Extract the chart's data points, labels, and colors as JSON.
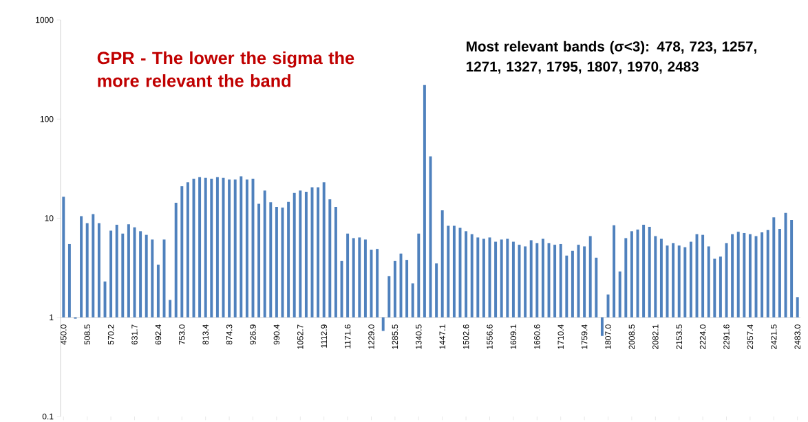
{
  "chart_data": {
    "type": "bar",
    "title": "GPR - The lower the sigma the more relevant the band",
    "annotations": [
      "**Most relevant bands (σ<3): 478, 723, 1257, 1271, 1327, 1795, 1807, 1970, 2483**"
    ],
    "categories": [
      "450.0",
      null,
      null,
      null,
      "508.5",
      null,
      null,
      null,
      "570.2",
      null,
      null,
      null,
      "631.7",
      null,
      null,
      null,
      "692.4",
      null,
      null,
      null,
      "753.0",
      null,
      null,
      null,
      "813.4",
      null,
      null,
      null,
      "874.3",
      null,
      null,
      null,
      "926.9",
      null,
      null,
      null,
      "990.4",
      null,
      null,
      null,
      "1052.7",
      null,
      null,
      null,
      "1112.9",
      null,
      null,
      null,
      "1171.6",
      null,
      null,
      null,
      "1229.0",
      null,
      null,
      null,
      "1285.5",
      null,
      null,
      null,
      "1340.5",
      null,
      null,
      null,
      "1447.1",
      null,
      null,
      null,
      "1502.6",
      null,
      null,
      null,
      "1556.6",
      null,
      null,
      null,
      "1609.1",
      null,
      null,
      null,
      "1660.6",
      null,
      null,
      null,
      "1710.4",
      null,
      null,
      null,
      "1759.4",
      null,
      null,
      null,
      "1807.0",
      null,
      null,
      null,
      "2008.5",
      null,
      null,
      null,
      "2082.1",
      null,
      null,
      null,
      "2153.5",
      null,
      null,
      null,
      "2224.0",
      null,
      null,
      null,
      "2291.6",
      null,
      null,
      null,
      "2357.4",
      null,
      null,
      null,
      "2421.5",
      null,
      null,
      null,
      "2483.0"
    ],
    "values": [
      15.5,
      4.5,
      -0.03,
      9.5,
      7.9,
      10,
      7.9,
      1.3,
      6.5,
      7.6,
      6.0,
      7.7,
      7.1,
      6.4,
      5.8,
      5.1,
      2.4,
      5.1,
      0.5,
      13.3,
      20,
      22,
      24,
      25,
      24.5,
      24,
      25,
      24.5,
      23.5,
      23.5,
      25.5,
      23.5,
      24,
      13,
      18,
      13.5,
      12,
      11.8,
      13.6,
      17,
      18,
      17.5,
      19.5,
      19.5,
      22,
      14.5,
      12,
      2.7,
      6,
      5.3,
      5.4,
      5.1,
      3.8,
      3.9,
      -0.27,
      1.6,
      2.7,
      3.4,
      2.8,
      1.2,
      6,
      219,
      41,
      2.5,
      11,
      7.4,
      7.4,
      7,
      6.4,
      5.9,
      5.4,
      5.2,
      5.4,
      4.8,
      5.1,
      5.2,
      4.8,
      4.4,
      4.2,
      5,
      4.6,
      5.2,
      4.6,
      4.4,
      4.5,
      3.2,
      3.7,
      4.4,
      4.2,
      5.6,
      3.0,
      -0.35,
      0.7,
      7.5,
      1.9,
      5.3,
      6.4,
      6.7,
      7.6,
      7.2,
      5.6,
      5.2,
      4.3,
      4.6,
      4.3,
      4.1,
      4.8,
      5.9,
      5.8,
      4.2,
      2.9,
      3.1,
      4.6,
      5.9,
      6.3,
      6.1,
      5.9,
      5.6,
      6.2,
      6.6,
      9.2,
      6.8,
      10.3,
      8.6,
      0.6
    ],
    "base": [
      1,
      1,
      1,
      1,
      1,
      1,
      1,
      1,
      1,
      1,
      1,
      1,
      1,
      1,
      1,
      1,
      1,
      1,
      1,
      1,
      1,
      1,
      1,
      1,
      1,
      1,
      1,
      1,
      1,
      1,
      1,
      1,
      1,
      1,
      1,
      1,
      1,
      1,
      1,
      1,
      1,
      1,
      1,
      1,
      1,
      1,
      1,
      1,
      1,
      1,
      1,
      1,
      1,
      1,
      1,
      1,
      1,
      1,
      1,
      1,
      1,
      1,
      1,
      1,
      1,
      1,
      1,
      1,
      1,
      1,
      1,
      1,
      1,
      1,
      1,
      1,
      1,
      1,
      1,
      1,
      1,
      1,
      1,
      1,
      1,
      1,
      1,
      1,
      1,
      1,
      1,
      1,
      1,
      1,
      1,
      1,
      1,
      1,
      1,
      1,
      1,
      1,
      1,
      1,
      1,
      1,
      1,
      1,
      1,
      1,
      1,
      1,
      1,
      1,
      1,
      1,
      1,
      1,
      1,
      1,
      1,
      1,
      1,
      1,
      1
    ],
    "color": "#4f81bd",
    "log": true,
    "ylim": [
      0.1,
      1000
    ],
    "yticks": [
      0.1,
      1,
      10,
      100,
      1000
    ]
  }
}
